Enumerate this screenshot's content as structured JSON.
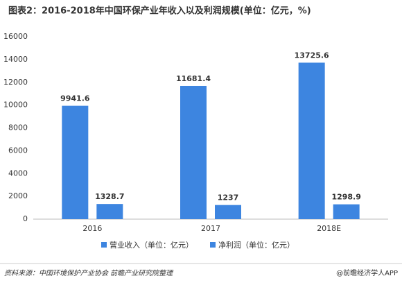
{
  "chart_data": {
    "type": "bar",
    "title": "图表2：2016-2018年中国环保产业年收入以及利润规模(单位：亿元，%)",
    "categories": [
      "2016",
      "2017",
      "2018E"
    ],
    "series": [
      {
        "name": "营业收入（单位：亿元）",
        "color": "#3d85e0",
        "values": [
          9941.6,
          11681.4,
          13725.6
        ]
      },
      {
        "name": "净利润（单位：亿元）",
        "color": "#3d85e0",
        "values": [
          1328.7,
          1237,
          1298.9
        ]
      }
    ],
    "ylim": [
      0,
      16000
    ],
    "yticks": [
      0,
      2000,
      4000,
      6000,
      8000,
      10000,
      12000,
      14000,
      16000
    ],
    "grid": false,
    "legend": "bottom",
    "source": "资料来源：中国环境保护产业协会 前瞻产业研究院整理",
    "credit": "@前瞻经济学人APP"
  }
}
